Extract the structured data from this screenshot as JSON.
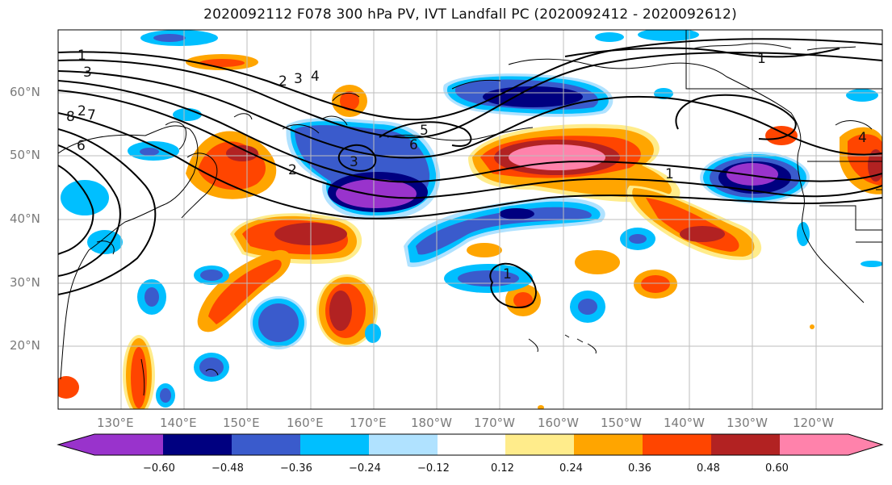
{
  "title": "2020092112 F078 300 hPa PV, IVT Landfall PC (2020092412 - 2020092612)",
  "map": {
    "lat_labels": [
      "60°N",
      "50°N",
      "40°N",
      "30°N",
      "20°N"
    ],
    "lon_labels": [
      "130°E",
      "140°E",
      "150°E",
      "160°E",
      "170°E",
      "180°W",
      "170°W",
      "160°W",
      "150°W",
      "140°W",
      "130°W",
      "120°W"
    ],
    "contour_labels": [
      "1",
      "3",
      "2",
      "3",
      "4",
      "2",
      "7",
      "8",
      "6",
      "5",
      "6",
      "3",
      "2",
      "1",
      "1",
      "4",
      "1"
    ]
  },
  "colorbar": {
    "colors": [
      "#9933cc",
      "#000080",
      "#3a5bcc",
      "#00bfff",
      "#b0e2ff",
      "#ffffff",
      "#ffec8b",
      "#ffa500",
      "#ff4500",
      "#b22222",
      "#ff82ab"
    ],
    "tick_labels": [
      "−0.60",
      "−0.48",
      "−0.36",
      "−0.24",
      "−0.12",
      "0.12",
      "0.24",
      "0.36",
      "0.48",
      "0.60"
    ]
  }
}
